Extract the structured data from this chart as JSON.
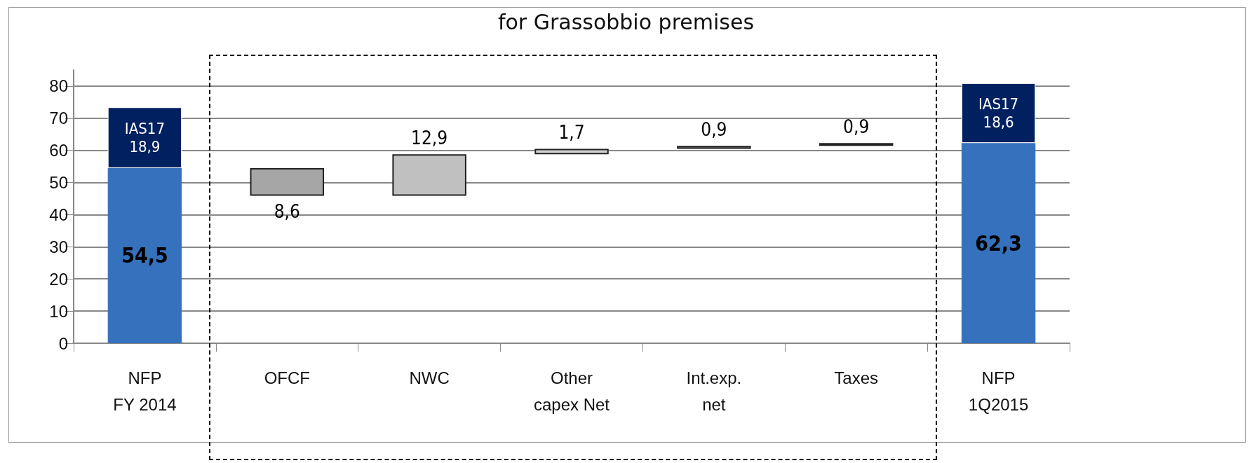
{
  "chart_data": {
    "type": "bar",
    "title": "for Grassobbio premises",
    "categories": [
      "NFP\nFY 2014",
      "OFCF",
      "NWC",
      "Other\ncapex Net",
      "Int.exp.\nnet",
      "Taxes",
      "NFP\n1Q2015"
    ],
    "stacked": true,
    "series": [
      {
        "values": [
          54.5,
          8.6,
          12.9,
          1.7,
          0.9,
          0.9,
          62.3
        ],
        "base": [
          0,
          45.9,
          45.9,
          58.8,
          60.5,
          61.4,
          0
        ],
        "colors": [
          "#3571bd",
          "#a6a6a6",
          "#c0c0c0",
          "#d0d0d0",
          "#bfbfbf",
          "#000000",
          "#3571bd"
        ],
        "value_labels": [
          "54,5",
          "8,6",
          "12,9",
          "1,7",
          "0,9",
          "0,9",
          "62,3"
        ]
      },
      {
        "color": "#002060",
        "values": [
          18.9,
          null,
          null,
          null,
          null,
          null,
          18.6
        ],
        "value_labels": [
          "IAS17\n18,9",
          null,
          null,
          null,
          null,
          null,
          "IAS17\n18,6"
        ]
      }
    ],
    "ylim": [
      0,
      85
    ],
    "yticks": [
      0,
      10,
      20,
      30,
      40,
      50,
      60,
      70,
      80
    ],
    "grid": "y"
  }
}
